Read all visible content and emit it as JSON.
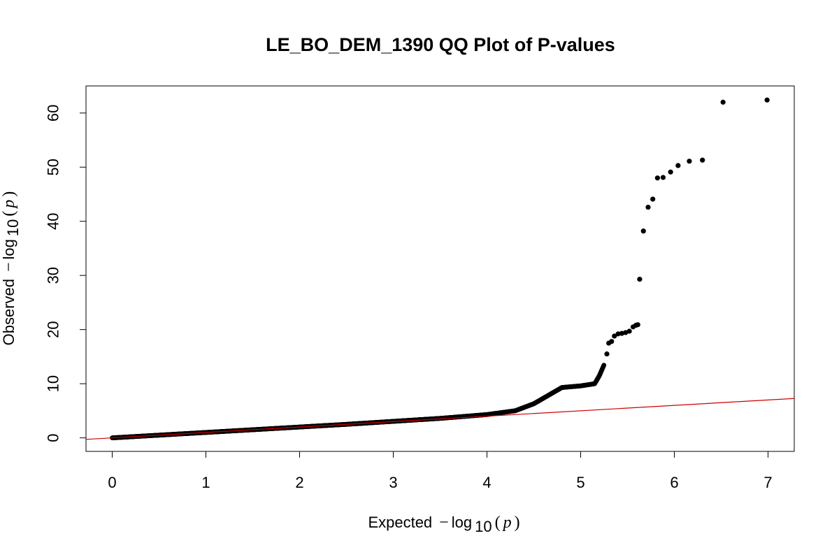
{
  "chart_data": {
    "type": "scatter",
    "title": "LE_BO_DEM_1390 QQ Plot of P-values",
    "xlabel": {
      "prefix": "Expected",
      "minus": "−",
      "log": "log",
      "sub": "10",
      "open": "(",
      "var": "p",
      "close": ")"
    },
    "ylabel": {
      "prefix": "Observed",
      "minus": "−",
      "log": "log",
      "sub": "10",
      "open": "(",
      "var": "p",
      "close": ")"
    },
    "xlim": [
      -0.28,
      7.28
    ],
    "ylim": [
      -2.5,
      65.0
    ],
    "xticks": [
      0,
      1,
      2,
      3,
      4,
      5,
      6,
      7
    ],
    "yticks": [
      0,
      10,
      20,
      30,
      40,
      50,
      60
    ],
    "point_color": "#000000",
    "reference_line": {
      "color": "#cc0000",
      "slope": 1,
      "intercept": 0
    },
    "bulk_curve": [
      [
        0.0,
        0.0
      ],
      [
        0.5,
        0.5
      ],
      [
        1.0,
        1.0
      ],
      [
        1.5,
        1.5
      ],
      [
        2.0,
        2.0
      ],
      [
        2.5,
        2.5
      ],
      [
        3.0,
        3.05
      ],
      [
        3.5,
        3.6
      ],
      [
        4.0,
        4.3
      ],
      [
        4.3,
        5.0
      ],
      [
        4.5,
        6.3
      ],
      [
        4.7,
        8.3
      ],
      [
        4.8,
        9.3
      ],
      [
        5.0,
        9.6
      ],
      [
        5.15,
        10.0
      ],
      [
        5.2,
        11.5
      ],
      [
        5.25,
        13.5
      ]
    ],
    "tail_points": [
      [
        5.28,
        15.5
      ],
      [
        5.3,
        17.5
      ],
      [
        5.33,
        17.8
      ],
      [
        5.36,
        18.8
      ],
      [
        5.4,
        19.2
      ],
      [
        5.44,
        19.3
      ],
      [
        5.48,
        19.45
      ],
      [
        5.52,
        19.7
      ],
      [
        5.56,
        20.5
      ],
      [
        5.59,
        20.8
      ],
      [
        5.61,
        20.9
      ],
      [
        5.63,
        29.3
      ],
      [
        5.67,
        38.2
      ],
      [
        5.72,
        42.6
      ],
      [
        5.77,
        44.1
      ],
      [
        5.82,
        48.0
      ],
      [
        5.88,
        48.1
      ],
      [
        5.96,
        49.1
      ],
      [
        6.04,
        50.3
      ],
      [
        6.16,
        51.1
      ],
      [
        6.3,
        51.3
      ],
      [
        6.52,
        62.0
      ],
      [
        6.99,
        62.4
      ]
    ]
  }
}
